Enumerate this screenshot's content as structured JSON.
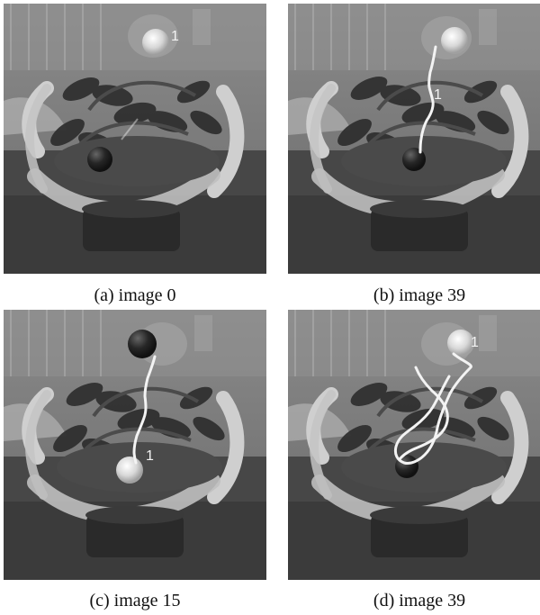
{
  "figure": {
    "panels": [
      {
        "caption": "(a) image 0",
        "track_label": "1",
        "variant": "a"
      },
      {
        "caption": "(b) image 39",
        "track_label": "1",
        "variant": "b"
      },
      {
        "caption": "(c) image 15",
        "track_label": "1",
        "variant": "c"
      },
      {
        "caption": "(d) image 39",
        "track_label": "1",
        "variant": "d"
      }
    ],
    "colors": {
      "image_background": "#6f6f6f",
      "wall_light": "#9c9c9c",
      "wall_dark": "#5c5c5c",
      "table": "#3f3f3f",
      "base": "#262626",
      "arc": "#c8c8c8",
      "track": "#f4f4f4",
      "ball_light": "#d7d7d7",
      "ball_dark": "#1f1f1f",
      "leaf": "#2f2f2f"
    }
  }
}
